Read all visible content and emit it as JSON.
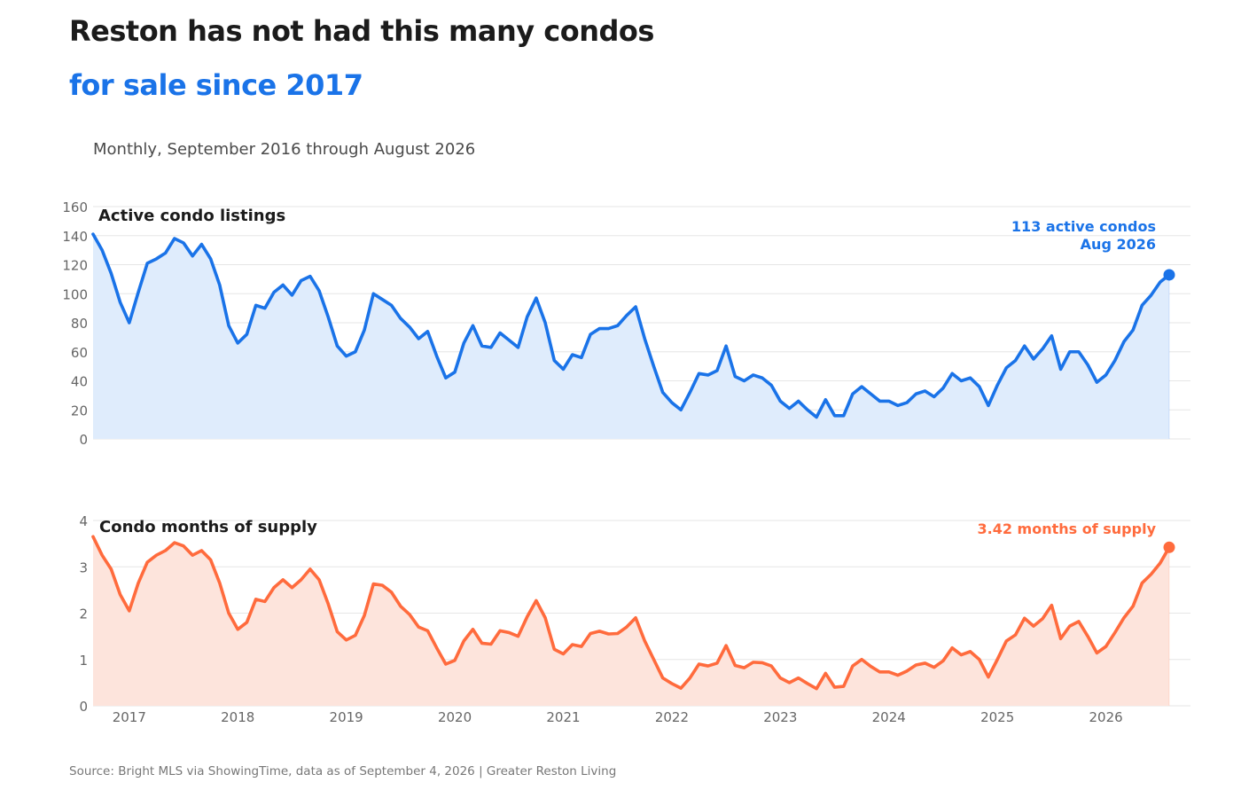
{
  "header": {
    "title": "Reston has not had this many condos",
    "title_line2": "for sale since 2017",
    "subtitle": "Monthly, September 2016 through August 2026"
  },
  "footer": {
    "source": "Source: Bright MLS via ShowingTime, data as of September 4, 2026  |  Greater Reston Living"
  },
  "colors": {
    "listings_line": "#1a73e8",
    "listings_fill": "#dfecfc",
    "supply_line": "#ff6b3d",
    "supply_fill": "#fde4dc",
    "grid": "#e6e6e6",
    "axis_text": "#666666"
  },
  "chart_data": [
    {
      "type": "area",
      "title": "Active condo listings",
      "ylim": [
        0,
        160
      ],
      "yticks": [
        0,
        20,
        40,
        60,
        80,
        100,
        120,
        140,
        160
      ],
      "x_start": "2016-09",
      "x_end": "2026-08",
      "xtick_labels": [
        "2017",
        "2018",
        "2019",
        "2020",
        "2021",
        "2022",
        "2023",
        "2024",
        "2025",
        "2026"
      ],
      "grid": true,
      "annotation": {
        "line1": "113 active condos",
        "line2": "Aug 2026"
      },
      "series": [
        {
          "values": [
            141,
            130,
            114,
            94,
            80,
            101,
            121,
            124,
            128,
            138,
            135,
            126,
            134,
            124,
            106,
            78,
            66,
            72,
            92,
            90,
            101,
            106,
            99,
            109,
            112,
            102,
            84,
            64,
            57,
            60,
            75,
            100,
            96,
            92,
            83,
            77,
            69,
            74,
            57,
            42,
            46,
            66,
            78,
            64,
            63,
            73,
            68,
            63,
            84,
            97,
            80,
            54,
            48,
            58,
            56,
            72,
            76,
            76,
            78,
            85,
            91,
            69,
            50,
            32,
            25,
            20,
            32,
            45,
            44,
            47,
            64,
            43,
            40,
            44,
            42,
            37,
            26,
            21,
            26,
            20,
            15,
            27,
            16,
            16,
            31,
            36,
            31,
            26,
            26,
            23,
            25,
            31,
            33,
            29,
            35,
            45,
            40,
            42,
            36,
            23,
            37,
            49,
            54,
            64,
            55,
            62,
            71,
            48,
            60,
            60,
            51,
            39,
            44,
            54,
            67,
            75,
            92,
            99,
            108,
            113
          ]
        }
      ]
    },
    {
      "type": "area",
      "title": "Condo months of supply",
      "ylim": [
        0,
        4
      ],
      "yticks": [
        0,
        1,
        2,
        3,
        4
      ],
      "x_start": "2016-09",
      "x_end": "2026-08",
      "xtick_labels": [
        "2017",
        "2018",
        "2019",
        "2020",
        "2021",
        "2022",
        "2023",
        "2024",
        "2025",
        "2026"
      ],
      "grid": true,
      "annotation": {
        "line1": "3.42 months of supply"
      },
      "series": [
        {
          "values": [
            3.65,
            3.25,
            2.95,
            2.4,
            2.05,
            2.65,
            3.1,
            3.25,
            3.35,
            3.52,
            3.45,
            3.25,
            3.35,
            3.15,
            2.65,
            2.0,
            1.65,
            1.8,
            2.3,
            2.25,
            2.55,
            2.72,
            2.55,
            2.72,
            2.95,
            2.72,
            2.2,
            1.6,
            1.42,
            1.52,
            1.95,
            2.63,
            2.6,
            2.45,
            2.15,
            1.97,
            1.7,
            1.62,
            1.25,
            0.9,
            0.98,
            1.4,
            1.65,
            1.35,
            1.33,
            1.62,
            1.58,
            1.5,
            1.92,
            2.27,
            1.9,
            1.22,
            1.12,
            1.32,
            1.28,
            1.56,
            1.61,
            1.55,
            1.56,
            1.7,
            1.9,
            1.4,
            1.0,
            0.6,
            0.48,
            0.38,
            0.6,
            0.9,
            0.86,
            0.92,
            1.3,
            0.87,
            0.82,
            0.94,
            0.93,
            0.86,
            0.6,
            0.5,
            0.6,
            0.48,
            0.37,
            0.7,
            0.4,
            0.42,
            0.86,
            1.0,
            0.85,
            0.73,
            0.73,
            0.66,
            0.75,
            0.88,
            0.92,
            0.83,
            0.97,
            1.25,
            1.1,
            1.17,
            1.0,
            0.62,
            1.0,
            1.4,
            1.53,
            1.89,
            1.72,
            1.88,
            2.17,
            1.45,
            1.72,
            1.82,
            1.5,
            1.14,
            1.28,
            1.58,
            1.9,
            2.15,
            2.65,
            2.84,
            3.08,
            3.42
          ]
        }
      ]
    }
  ]
}
